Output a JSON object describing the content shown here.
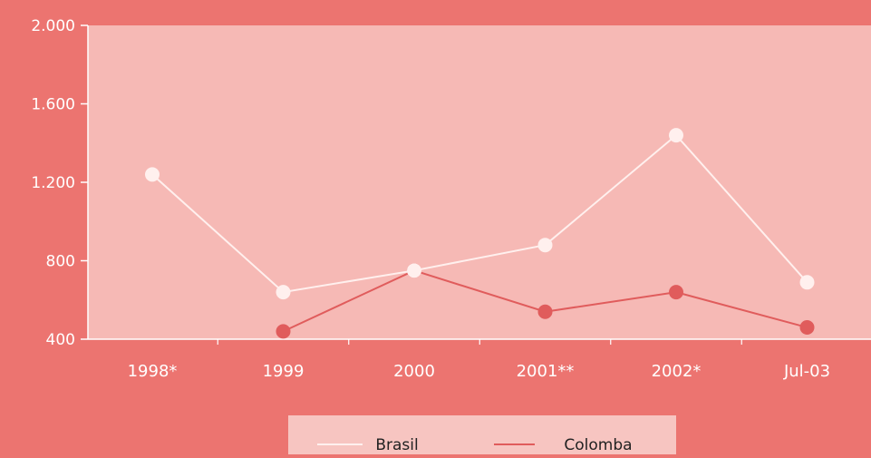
{
  "colors": {
    "background": "#ec7470",
    "plot_area": "#f6b9b5",
    "legend_box": "#f7c5c1",
    "brasil": "#fff0ee",
    "colombia": "#e05c5c",
    "text": "#ffffff",
    "legend_text": "#222222"
  },
  "chart_data": {
    "type": "line",
    "categories": [
      "1998*",
      "1999",
      "2000",
      "2001**",
      "2002*",
      "Jul-03"
    ],
    "yticks": [
      "2.000",
      "1.600",
      "1.200",
      "800",
      "400"
    ],
    "ylim": [
      400,
      2000
    ],
    "grid": false,
    "legend_position": "bottom",
    "series": [
      {
        "name": "Brasil",
        "values": [
          1240,
          640,
          750,
          880,
          1440,
          690
        ]
      },
      {
        "name": "Colomba",
        "values": [
          null,
          440,
          750,
          540,
          640,
          460
        ]
      }
    ]
  }
}
